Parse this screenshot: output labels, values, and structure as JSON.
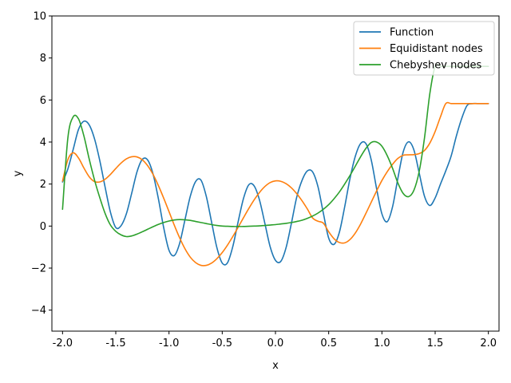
{
  "chart_data": {
    "type": "line",
    "title": "",
    "xlabel": "x",
    "ylabel": "y",
    "xlim": [
      -2.1,
      2.1
    ],
    "ylim": [
      -5,
      10
    ],
    "xticks": [
      "-2.0",
      "-1.5",
      "-1.0",
      "-0.5",
      "0.0",
      "0.5",
      "1.0",
      "1.5",
      "2.0"
    ],
    "yticks": [
      "−4",
      "−2",
      "0",
      "2",
      "4",
      "6",
      "8",
      "10"
    ],
    "grid": false,
    "legend_position": "top-right",
    "series": [
      {
        "name": "Function",
        "color": "#1f77b4",
        "x": [
          -2.0,
          -1.95,
          -1.9,
          -1.85,
          -1.8,
          -1.75,
          -1.7,
          -1.65,
          -1.6,
          -1.55,
          -1.5,
          -1.45,
          -1.4,
          -1.35,
          -1.3,
          -1.25,
          -1.2,
          -1.15,
          -1.1,
          -1.05,
          -1.0,
          -0.95,
          -0.9,
          -0.85,
          -0.8,
          -0.75,
          -0.7,
          -0.65,
          -0.6,
          -0.55,
          -0.5,
          -0.45,
          -0.4,
          -0.35,
          -0.3,
          -0.25,
          -0.2,
          -0.15,
          -0.1,
          -0.05,
          0.0,
          0.05,
          0.1,
          0.15,
          0.2,
          0.25,
          0.3,
          0.35,
          0.4,
          0.45,
          0.5,
          0.55,
          0.6,
          0.65,
          0.7,
          0.75,
          0.8,
          0.85,
          0.9,
          0.95,
          1.0,
          1.05,
          1.1,
          1.15,
          1.2,
          1.25,
          1.3,
          1.35,
          1.4,
          1.45,
          1.5,
          1.55,
          1.6,
          1.65,
          1.7,
          1.75,
          1.8,
          1.85,
          1.9,
          1.95,
          2.0
        ],
        "y": [
          2.1,
          2.72,
          3.65,
          4.6,
          4.99,
          4.82,
          4.16,
          3.11,
          1.85,
          0.66,
          -0.07,
          0.02,
          0.59,
          1.57,
          2.59,
          3.18,
          3.14,
          2.48,
          1.31,
          -0.07,
          -1.15,
          -1.4,
          -0.82,
          0.3,
          1.42,
          2.12,
          2.19,
          1.42,
          0.19,
          -1.03,
          -1.76,
          -1.74,
          -0.96,
          0.22,
          1.32,
          1.97,
          1.91,
          1.24,
          0.14,
          -0.98,
          -1.63,
          -1.68,
          -1.02,
          0.14,
          1.38,
          2.18,
          2.63,
          2.57,
          1.86,
          0.61,
          -0.57,
          -0.87,
          -0.3,
          0.91,
          2.26,
          3.32,
          3.93,
          3.92,
          3.14,
          1.78,
          0.58,
          0.21,
          0.92,
          2.28,
          3.53,
          4.01,
          3.63,
          2.53,
          1.42,
          0.98,
          1.34,
          2.0,
          2.63,
          3.33,
          4.3,
          5.13,
          5.74,
          5.83,
          5.83,
          5.83,
          5.83
        ]
      },
      {
        "name": "Equidistant nodes",
        "color": "#ff7f0e",
        "x": [
          -2.0,
          -1.95,
          -1.9,
          -1.85,
          -1.8,
          -1.75,
          -1.7,
          -1.65,
          -1.6,
          -1.55,
          -1.5,
          -1.45,
          -1.4,
          -1.35,
          -1.3,
          -1.25,
          -1.2,
          -1.15,
          -1.1,
          -1.05,
          -1.0,
          -0.95,
          -0.9,
          -0.85,
          -0.8,
          -0.75,
          -0.7,
          -0.65,
          -0.6,
          -0.55,
          -0.5,
          -0.45,
          -0.4,
          -0.35,
          -0.3,
          -0.25,
          -0.2,
          -0.15,
          -0.1,
          -0.05,
          0.0,
          0.05,
          0.1,
          0.15,
          0.2,
          0.25,
          0.3,
          0.35,
          0.4,
          0.45,
          0.5,
          0.55,
          0.6,
          0.65,
          0.7,
          0.75,
          0.8,
          0.85,
          0.9,
          0.95,
          1.0,
          1.05,
          1.1,
          1.15,
          1.2,
          1.25,
          1.3,
          1.35,
          1.4,
          1.45,
          1.5,
          1.55,
          1.6,
          1.65,
          1.7,
          1.75,
          1.8,
          1.85,
          1.9,
          1.95,
          2.0
        ],
        "y": [
          2.14,
          3.16,
          3.49,
          3.24,
          2.77,
          2.35,
          2.12,
          2.1,
          2.23,
          2.46,
          2.74,
          3.0,
          3.2,
          3.3,
          3.29,
          3.15,
          2.87,
          2.46,
          1.93,
          1.33,
          0.69,
          0.04,
          -0.56,
          -1.08,
          -1.48,
          -1.74,
          -1.87,
          -1.87,
          -1.76,
          -1.55,
          -1.26,
          -0.9,
          -0.49,
          -0.05,
          0.4,
          0.84,
          1.25,
          1.6,
          1.88,
          2.07,
          2.15,
          2.13,
          2.02,
          1.82,
          1.54,
          1.2,
          0.81,
          0.38,
          0.23,
          0.14,
          -0.27,
          -0.6,
          -0.78,
          -0.8,
          -0.64,
          -0.33,
          0.1,
          0.61,
          1.14,
          1.67,
          2.17,
          2.59,
          2.94,
          3.22,
          3.37,
          3.39,
          3.4,
          3.45,
          3.6,
          3.95,
          4.5,
          5.2,
          5.83,
          5.83,
          5.83,
          5.83,
          5.83,
          5.83,
          5.83,
          5.83,
          5.83
        ]
      },
      {
        "name": "Chebyshev nodes",
        "color": "#2ca02c",
        "x": [
          -2.0,
          -1.95,
          -1.9,
          -1.85,
          -1.8,
          -1.75,
          -1.7,
          -1.65,
          -1.6,
          -1.55,
          -1.5,
          -1.45,
          -1.4,
          -1.35,
          -1.3,
          -1.25,
          -1.2,
          -1.15,
          -1.1,
          -1.05,
          -1.0,
          -0.95,
          -0.9,
          -0.85,
          -0.8,
          -0.75,
          -0.7,
          -0.65,
          -0.6,
          -0.55,
          -0.5,
          -0.45,
          -0.4,
          -0.35,
          -0.3,
          -0.25,
          -0.2,
          -0.15,
          -0.1,
          -0.05,
          0.0,
          0.05,
          0.1,
          0.15,
          0.2,
          0.25,
          0.3,
          0.35,
          0.4,
          0.45,
          0.5,
          0.55,
          0.6,
          0.65,
          0.7,
          0.75,
          0.8,
          0.85,
          0.9,
          0.95,
          1.0,
          1.05,
          1.1,
          1.15,
          1.2,
          1.25,
          1.3,
          1.35,
          1.4,
          1.45,
          1.5,
          1.55,
          1.6,
          1.65,
          1.7,
          1.75,
          1.8,
          1.85,
          1.9,
          1.95,
          2.0
        ],
        "y": [
          0.8,
          4.2,
          5.2,
          5.1,
          4.3,
          3.2,
          2.2,
          1.35,
          0.6,
          0.05,
          -0.25,
          -0.42,
          -0.5,
          -0.47,
          -0.38,
          -0.27,
          -0.15,
          -0.03,
          0.08,
          0.17,
          0.24,
          0.29,
          0.31,
          0.3,
          0.27,
          0.22,
          0.17,
          0.12,
          0.07,
          0.03,
          0.0,
          -0.01,
          -0.02,
          -0.02,
          -0.02,
          -0.01,
          0.0,
          0.01,
          0.03,
          0.05,
          0.07,
          0.1,
          0.13,
          0.17,
          0.22,
          0.28,
          0.37,
          0.48,
          0.62,
          0.8,
          1.02,
          1.3,
          1.62,
          2.0,
          2.41,
          2.85,
          3.3,
          3.7,
          3.98,
          4.0,
          3.8,
          3.35,
          2.75,
          2.05,
          1.55,
          1.4,
          1.7,
          2.6,
          4.2,
          6.3,
          7.6,
          7.6,
          7.6,
          7.6,
          7.6,
          7.6,
          7.6,
          7.6,
          7.6,
          7.6,
          7.6
        ]
      }
    ]
  }
}
